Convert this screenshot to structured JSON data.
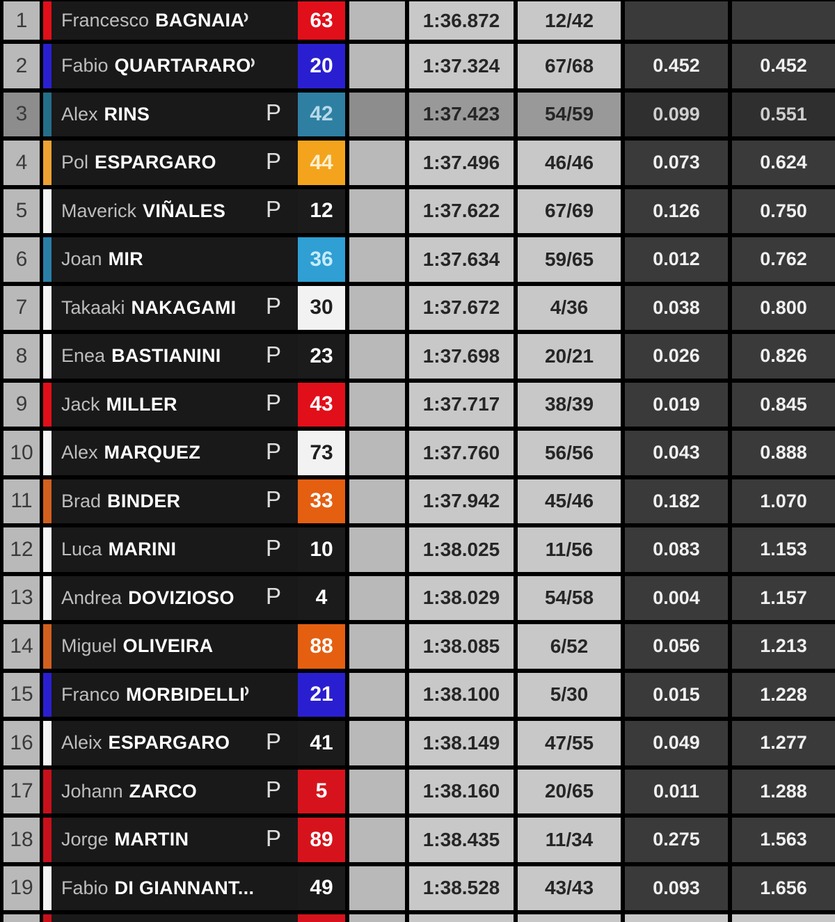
{
  "table": {
    "semantic_columns": [
      "position",
      "team_color",
      "rider_name",
      "tyre_indicator",
      "rider_number",
      "best_lap_time",
      "laps",
      "gap_previous",
      "gap_leader"
    ],
    "highlight_row_position": "3",
    "rows": [
      {
        "pos": "1",
        "first": "Francesco",
        "last": "BAGNAIA",
        "p": "clipped",
        "num": "63",
        "num_bg": "#e10f1a",
        "num_fg": "#ffffff",
        "bar": "#e10f1a",
        "time": "1:36.872",
        "laps": "12/42",
        "gap1": "",
        "gap2": "",
        "highlight": false,
        "partial": false,
        "light_gaps": false
      },
      {
        "pos": "2",
        "first": "Fabio",
        "last": "QUARTARARO",
        "p": "clipped",
        "num": "20",
        "num_bg": "#2a1fd0",
        "num_fg": "#ffffff",
        "bar": "#2a1fd0",
        "time": "1:37.324",
        "laps": "67/68",
        "gap1": "0.452",
        "gap2": "0.452",
        "highlight": false,
        "partial": false,
        "light_gaps": false
      },
      {
        "pos": "3",
        "first": "Alex",
        "last": "RINS",
        "p": "full",
        "num": "42",
        "num_bg": "#2f7fa3",
        "num_fg": "#b5d9e8",
        "bar": "#256e89",
        "time": "1:37.423",
        "laps": "54/59",
        "gap1": "0.099",
        "gap2": "0.551",
        "highlight": true,
        "partial": false,
        "light_gaps": false
      },
      {
        "pos": "4",
        "first": "Pol",
        "last": "ESPARGARO",
        "p": "full",
        "num": "44",
        "num_bg": "#f4a41c",
        "num_fg": "#fcefcf",
        "bar": "#eda233",
        "time": "1:37.496",
        "laps": "46/46",
        "gap1": "0.073",
        "gap2": "0.624",
        "highlight": false,
        "partial": false,
        "light_gaps": false
      },
      {
        "pos": "5",
        "first": "Maverick",
        "last": "VIÑALES",
        "p": "full",
        "num": "12",
        "num_bg": "#1b1b1b",
        "num_fg": "#ffffff",
        "bar": "#f5f5f5",
        "time": "1:37.622",
        "laps": "67/69",
        "gap1": "0.126",
        "gap2": "0.750",
        "highlight": false,
        "partial": false,
        "light_gaps": false
      },
      {
        "pos": "6",
        "first": "Joan",
        "last": "MIR",
        "p": "none",
        "num": "36",
        "num_bg": "#2f9fd4",
        "num_fg": "#c6ecfa",
        "bar": "#2a7fa8",
        "time": "1:37.634",
        "laps": "59/65",
        "gap1": "0.012",
        "gap2": "0.762",
        "highlight": false,
        "partial": false,
        "light_gaps": false
      },
      {
        "pos": "7",
        "first": "Takaaki",
        "last": "NAKAGAMI",
        "p": "full",
        "num": "30",
        "num_bg": "#f2f2f2",
        "num_fg": "#1f1f1f",
        "bar": "#f5f5f5",
        "time": "1:37.672",
        "laps": "4/36",
        "gap1": "0.038",
        "gap2": "0.800",
        "highlight": false,
        "partial": false,
        "light_gaps": false
      },
      {
        "pos": "8",
        "first": "Enea",
        "last": "BASTIANINI",
        "p": "full",
        "num": "23",
        "num_bg": "#1b1b1b",
        "num_fg": "#ffffff",
        "bar": "#f5f5f5",
        "time": "1:37.698",
        "laps": "20/21",
        "gap1": "0.026",
        "gap2": "0.826",
        "highlight": false,
        "partial": false,
        "light_gaps": false
      },
      {
        "pos": "9",
        "first": "Jack",
        "last": "MILLER",
        "p": "full",
        "num": "43",
        "num_bg": "#e10f1a",
        "num_fg": "#ffffff",
        "bar": "#e10f1a",
        "time": "1:37.717",
        "laps": "38/39",
        "gap1": "0.019",
        "gap2": "0.845",
        "highlight": false,
        "partial": false,
        "light_gaps": false
      },
      {
        "pos": "10",
        "first": "Alex",
        "last": "MARQUEZ",
        "p": "full",
        "num": "73",
        "num_bg": "#f2f2f2",
        "num_fg": "#1f1f1f",
        "bar": "#f5f5f5",
        "time": "1:37.760",
        "laps": "56/56",
        "gap1": "0.043",
        "gap2": "0.888",
        "highlight": false,
        "partial": false,
        "light_gaps": false
      },
      {
        "pos": "11",
        "first": "Brad",
        "last": "BINDER",
        "p": "full",
        "num": "33",
        "num_bg": "#e55f11",
        "num_fg": "#ffffff",
        "bar": "#d2601f",
        "time": "1:37.942",
        "laps": "45/46",
        "gap1": "0.182",
        "gap2": "1.070",
        "highlight": false,
        "partial": false,
        "light_gaps": false
      },
      {
        "pos": "12",
        "first": "Luca",
        "last": "MARINI",
        "p": "full",
        "num": "10",
        "num_bg": "#1b1b1b",
        "num_fg": "#ffffff",
        "bar": "#f5f5f5",
        "time": "1:38.025",
        "laps": "11/56",
        "gap1": "0.083",
        "gap2": "1.153",
        "highlight": false,
        "partial": false,
        "light_gaps": false
      },
      {
        "pos": "13",
        "first": "Andrea",
        "last": "DOVIZIOSO",
        "p": "full",
        "num": "4",
        "num_bg": "#1b1b1b",
        "num_fg": "#ffffff",
        "bar": "#f5f5f5",
        "time": "1:38.029",
        "laps": "54/58",
        "gap1": "0.004",
        "gap2": "1.157",
        "highlight": false,
        "partial": false,
        "light_gaps": false
      },
      {
        "pos": "14",
        "first": "Miguel",
        "last": "OLIVEIRA",
        "p": "none",
        "num": "88",
        "num_bg": "#e55f11",
        "num_fg": "#ffffff",
        "bar": "#d2601f",
        "time": "1:38.085",
        "laps": "6/52",
        "gap1": "0.056",
        "gap2": "1.213",
        "highlight": false,
        "partial": false,
        "light_gaps": false
      },
      {
        "pos": "15",
        "first": "Franco",
        "last": "MORBIDELLI",
        "p": "clipped",
        "num": "21",
        "num_bg": "#2a1fd0",
        "num_fg": "#ffffff",
        "bar": "#2a1fd0",
        "time": "1:38.100",
        "laps": "5/30",
        "gap1": "0.015",
        "gap2": "1.228",
        "highlight": false,
        "partial": false,
        "light_gaps": false
      },
      {
        "pos": "16",
        "first": "Aleix",
        "last": "ESPARGARO",
        "p": "full",
        "num": "41",
        "num_bg": "#1b1b1b",
        "num_fg": "#ffffff",
        "bar": "#f5f5f5",
        "time": "1:38.149",
        "laps": "47/55",
        "gap1": "0.049",
        "gap2": "1.277",
        "highlight": false,
        "partial": false,
        "light_gaps": false
      },
      {
        "pos": "17",
        "first": "Johann",
        "last": "ZARCO",
        "p": "full",
        "num": "5",
        "num_bg": "#d6131c",
        "num_fg": "#ffffff",
        "bar": "#c8101c",
        "time": "1:38.160",
        "laps": "20/65",
        "gap1": "0.011",
        "gap2": "1.288",
        "highlight": false,
        "partial": false,
        "light_gaps": false
      },
      {
        "pos": "18",
        "first": "Jorge",
        "last": "MARTIN",
        "p": "full",
        "num": "89",
        "num_bg": "#d6131c",
        "num_fg": "#ffffff",
        "bar": "#c8101c",
        "time": "1:38.435",
        "laps": "11/34",
        "gap1": "0.275",
        "gap2": "1.563",
        "highlight": false,
        "partial": false,
        "light_gaps": false
      },
      {
        "pos": "19",
        "first": "Fabio",
        "last": "DI GIANNANT...",
        "p": "none",
        "num": "49",
        "num_bg": "#1b1b1b",
        "num_fg": "#ffffff",
        "bar": "#f5f5f5",
        "time": "1:38.528",
        "laps": "43/43",
        "gap1": "0.093",
        "gap2": "1.656",
        "highlight": false,
        "partial": false,
        "light_gaps": false
      },
      {
        "pos": "",
        "first": "",
        "last": "",
        "p": "none",
        "num": "",
        "num_bg": "#d6131c",
        "num_fg": "#ffffff",
        "bar": "#c8101c",
        "time": "",
        "laps": "",
        "gap1": "",
        "gap2": "",
        "highlight": false,
        "partial": true,
        "light_gaps": true
      }
    ]
  },
  "colors": {
    "background": "#000000",
    "row_dark_cell": "#191919",
    "light_cell": "#b9b9b9",
    "value_cell": "#c8c8c8",
    "gap_cell": "#3a3a3a",
    "highlight_light_cell": "#8d8d8d",
    "ducati_red": "#e10f1a",
    "yamaha_blue": "#2a1fd0",
    "suzuki_teal": "#2f7fa3",
    "ktm_amber": "#f4a41c",
    "mir_cyan": "#2f9fd4",
    "binder_orange": "#e55f11",
    "pramac_red": "#d6131c"
  }
}
